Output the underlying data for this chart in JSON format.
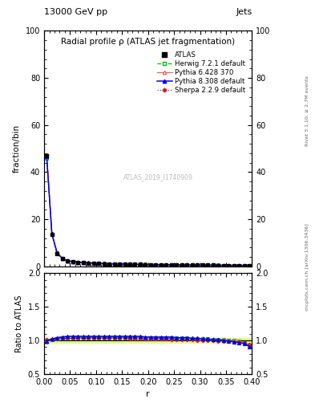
{
  "title": "Radial profile ρ (ATLAS jet fragmentation)",
  "top_left_label": "13000 GeV pp",
  "top_right_label": "Jets",
  "right_label_top": "Rivet 3.1.10; ≥ 2.7M events",
  "right_label_bottom": "mcplots.cern.ch [arXiv:1306.3436]",
  "watermark": "ATLAS_2019_I1740909",
  "xlabel": "r",
  "ylabel_main": "fraction/bin",
  "ylabel_ratio": "Ratio to ATLAS",
  "r_values": [
    0.005,
    0.015,
    0.025,
    0.035,
    0.045,
    0.055,
    0.065,
    0.075,
    0.085,
    0.095,
    0.105,
    0.115,
    0.125,
    0.135,
    0.145,
    0.155,
    0.165,
    0.175,
    0.185,
    0.195,
    0.205,
    0.215,
    0.225,
    0.235,
    0.245,
    0.255,
    0.265,
    0.275,
    0.285,
    0.295,
    0.305,
    0.315,
    0.325,
    0.335,
    0.345,
    0.355,
    0.365,
    0.375,
    0.385,
    0.395
  ],
  "atlas_y": [
    47.0,
    13.5,
    5.5,
    3.2,
    2.3,
    1.9,
    1.7,
    1.55,
    1.4,
    1.3,
    1.2,
    1.1,
    1.05,
    1.0,
    0.95,
    0.9,
    0.85,
    0.82,
    0.79,
    0.76,
    0.73,
    0.7,
    0.67,
    0.65,
    0.62,
    0.6,
    0.58,
    0.56,
    0.54,
    0.52,
    0.5,
    0.48,
    0.46,
    0.44,
    0.42,
    0.4,
    0.38,
    0.36,
    0.34,
    0.32
  ],
  "atlas_err": [
    0.5,
    0.15,
    0.07,
    0.04,
    0.025,
    0.018,
    0.014,
    0.012,
    0.011,
    0.009,
    0.009,
    0.008,
    0.008,
    0.007,
    0.007,
    0.007,
    0.006,
    0.006,
    0.006,
    0.005,
    0.005,
    0.005,
    0.005,
    0.004,
    0.004,
    0.004,
    0.004,
    0.004,
    0.003,
    0.003,
    0.003,
    0.003,
    0.003,
    0.003,
    0.003,
    0.003,
    0.003,
    0.003,
    0.003,
    0.003
  ],
  "herwig_ratio": [
    0.98,
    1.01,
    1.02,
    1.03,
    1.03,
    1.03,
    1.04,
    1.04,
    1.04,
    1.04,
    1.04,
    1.04,
    1.04,
    1.04,
    1.04,
    1.04,
    1.04,
    1.04,
    1.04,
    1.04,
    1.04,
    1.04,
    1.03,
    1.03,
    1.03,
    1.03,
    1.03,
    1.03,
    1.02,
    1.02,
    1.02,
    1.02,
    1.01,
    1.01,
    1.01,
    1.0,
    1.0,
    0.99,
    0.96,
    0.93
  ],
  "pythia6_ratio": [
    1.01,
    1.02,
    1.04,
    1.05,
    1.05,
    1.05,
    1.05,
    1.05,
    1.05,
    1.05,
    1.05,
    1.05,
    1.05,
    1.05,
    1.05,
    1.05,
    1.05,
    1.05,
    1.05,
    1.04,
    1.04,
    1.04,
    1.04,
    1.04,
    1.04,
    1.04,
    1.04,
    1.03,
    1.03,
    1.03,
    1.03,
    1.02,
    1.02,
    1.01,
    1.01,
    1.0,
    1.0,
    0.99,
    0.97,
    0.93
  ],
  "pythia8_ratio": [
    0.99,
    1.02,
    1.04,
    1.05,
    1.06,
    1.06,
    1.06,
    1.06,
    1.06,
    1.06,
    1.06,
    1.06,
    1.06,
    1.06,
    1.06,
    1.06,
    1.06,
    1.06,
    1.06,
    1.05,
    1.05,
    1.05,
    1.05,
    1.05,
    1.05,
    1.04,
    1.04,
    1.04,
    1.03,
    1.03,
    1.02,
    1.02,
    1.01,
    1.01,
    1.0,
    0.99,
    0.98,
    0.97,
    0.95,
    0.91
  ],
  "sherpa_ratio": [
    1.01,
    1.01,
    1.02,
    1.03,
    1.03,
    1.03,
    1.03,
    1.03,
    1.03,
    1.03,
    1.03,
    1.03,
    1.03,
    1.03,
    1.03,
    1.03,
    1.02,
    1.02,
    1.02,
    1.02,
    1.02,
    1.02,
    1.02,
    1.02,
    1.01,
    1.01,
    1.01,
    1.01,
    1.01,
    1.0,
    1.0,
    1.0,
    1.0,
    0.99,
    0.99,
    0.99,
    0.98,
    0.98,
    0.97,
    0.94
  ],
  "atlas_band_ratio_lo": 0.97,
  "atlas_band_ratio_hi": 1.03,
  "color_atlas": "#000000",
  "color_herwig": "#00bb00",
  "color_pythia6": "#ee6666",
  "color_pythia8": "#0000ee",
  "color_sherpa": "#cc2222",
  "color_band": "#ddff88",
  "ylim_main": [
    0,
    100
  ],
  "ylim_ratio": [
    0.5,
    2.0
  ],
  "yticks_main": [
    0,
    20,
    40,
    60,
    80,
    100
  ],
  "yticks_ratio": [
    0.5,
    1.0,
    1.5,
    2.0
  ],
  "xlim": [
    0,
    0.4
  ]
}
